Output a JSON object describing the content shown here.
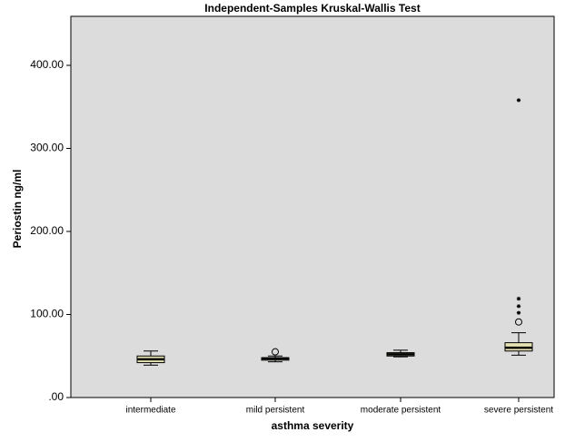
{
  "chart_data": {
    "type": "box",
    "title": "Independent-Samples Kruskal-Wallis Test",
    "x_label": "asthma severity",
    "y_label": "Periostin ng/ml",
    "categories": [
      "intermediate",
      "mild persistent",
      "moderate persistent",
      "severe persistent"
    ],
    "boxes": [
      {
        "min": 39,
        "q1": 42,
        "median": 46,
        "q3": 50,
        "max": 56,
        "outliers": [],
        "extremes": []
      },
      {
        "min": 43,
        "q1": 45,
        "median": 47,
        "q3": 48,
        "max": 50,
        "outliers": [
          55
        ],
        "extremes": []
      },
      {
        "min": 49,
        "q1": 50,
        "median": 52,
        "q3": 54,
        "max": 57,
        "outliers": [],
        "extremes": []
      },
      {
        "min": 51,
        "q1": 56,
        "median": 60,
        "q3": 66,
        "max": 78,
        "outliers": [
          91
        ],
        "extremes": [
          102,
          110,
          119,
          358
        ]
      }
    ],
    "color": "#e6e2b4",
    "ylim": [
      0,
      459
    ],
    "yticks": [
      {
        "value": 0,
        "label": ".00"
      },
      {
        "value": 100,
        "label": "100.00"
      },
      {
        "value": 200,
        "label": "200.00"
      },
      {
        "value": 300,
        "label": "300.00"
      },
      {
        "value": 400,
        "label": "400.00"
      }
    ]
  }
}
